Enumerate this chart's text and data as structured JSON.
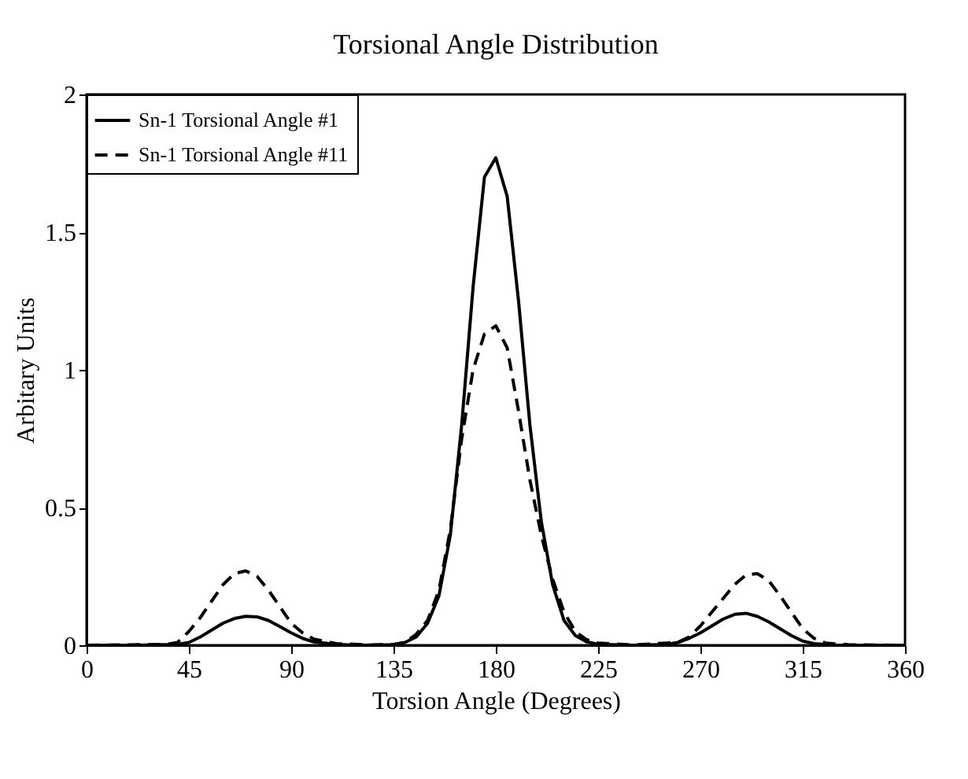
{
  "chart_data": {
    "type": "line",
    "title": "Torsional Angle Distribution",
    "xlabel": "Torsion Angle (Degrees)",
    "ylabel": "Arbitary Units",
    "xlim": [
      0,
      360
    ],
    "xticks": [
      0,
      45,
      90,
      135,
      180,
      225,
      270,
      315,
      360
    ],
    "ylim": [
      0,
      2
    ],
    "yticks": [
      0,
      0.5,
      1,
      1.5,
      2
    ],
    "grid": false,
    "legend": "top left",
    "marker": "none",
    "series": [
      {
        "name": "Sn-1 Torsional Angle #1",
        "color": "#000000",
        "line_style": "solid",
        "x": [
          0,
          20,
          40,
          45,
          50,
          55,
          60,
          65,
          70,
          75,
          80,
          85,
          90,
          95,
          100,
          110,
          120,
          135,
          140,
          145,
          150,
          155,
          160,
          165,
          170,
          175,
          180,
          185,
          190,
          195,
          200,
          205,
          210,
          215,
          220,
          225,
          240,
          255,
          260,
          265,
          270,
          275,
          280,
          285,
          290,
          295,
          300,
          305,
          310,
          315,
          320,
          330,
          360
        ],
        "values": [
          0,
          0,
          0.003,
          0.01,
          0.03,
          0.055,
          0.08,
          0.097,
          0.105,
          0.103,
          0.09,
          0.068,
          0.045,
          0.025,
          0.012,
          0.003,
          0,
          0.002,
          0.01,
          0.03,
          0.08,
          0.18,
          0.4,
          0.8,
          1.3,
          1.7,
          1.77,
          1.63,
          1.25,
          0.8,
          0.45,
          0.22,
          0.09,
          0.035,
          0.012,
          0.004,
          0,
          0.003,
          0.01,
          0.025,
          0.045,
          0.07,
          0.095,
          0.112,
          0.116,
          0.105,
          0.085,
          0.06,
          0.035,
          0.015,
          0.006,
          0,
          0
        ]
      },
      {
        "name": "Sn-1 Torsional Angle #11",
        "color": "#000000",
        "line_style": "dashed",
        "x": [
          0,
          35,
          40,
          45,
          50,
          55,
          60,
          65,
          70,
          75,
          80,
          85,
          90,
          95,
          100,
          110,
          125,
          135,
          140,
          145,
          150,
          155,
          160,
          165,
          170,
          175,
          180,
          185,
          190,
          195,
          200,
          205,
          210,
          215,
          220,
          225,
          240,
          260,
          265,
          270,
          275,
          280,
          285,
          290,
          295,
          300,
          305,
          310,
          315,
          320,
          325,
          335,
          360
        ],
        "values": [
          0,
          0.003,
          0.01,
          0.05,
          0.1,
          0.16,
          0.22,
          0.26,
          0.27,
          0.25,
          0.2,
          0.14,
          0.08,
          0.045,
          0.022,
          0.006,
          0.001,
          0.003,
          0.01,
          0.04,
          0.09,
          0.2,
          0.42,
          0.75,
          1.0,
          1.13,
          1.16,
          1.08,
          0.85,
          0.6,
          0.4,
          0.24,
          0.12,
          0.05,
          0.02,
          0.008,
          0.001,
          0.01,
          0.03,
          0.07,
          0.12,
          0.17,
          0.22,
          0.255,
          0.26,
          0.235,
          0.18,
          0.12,
          0.06,
          0.025,
          0.008,
          0.002,
          0
        ]
      }
    ]
  }
}
